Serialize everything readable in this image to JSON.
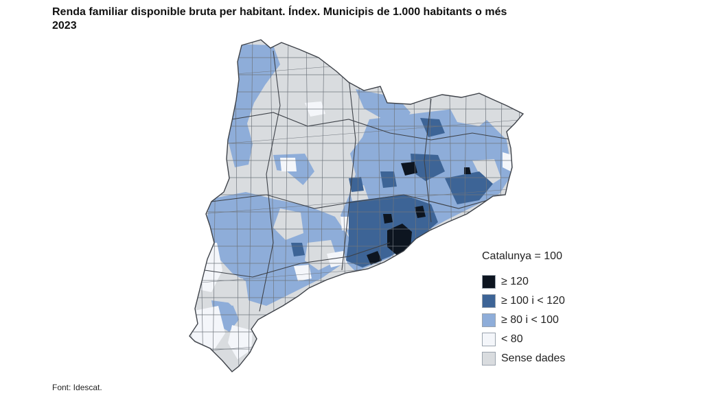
{
  "title_line1": "Renda familiar disponible bruta per habitant. Índex. Municipis de 1.000 habitants o més",
  "title_line2": "2023",
  "legend": {
    "title": "Catalunya = 100",
    "items": [
      {
        "label": "≥ 120",
        "color": "#0d1520"
      },
      {
        "label": "≥ 100 i < 120",
        "color": "#3d6496"
      },
      {
        "label": "≥ 80 i < 100",
        "color": "#8eadd9"
      },
      {
        "label": "< 80",
        "color": "#f4f6fa"
      },
      {
        "label": "Sense dades",
        "color": "#d9dcdf"
      }
    ]
  },
  "source": "Font: Idescat."
}
